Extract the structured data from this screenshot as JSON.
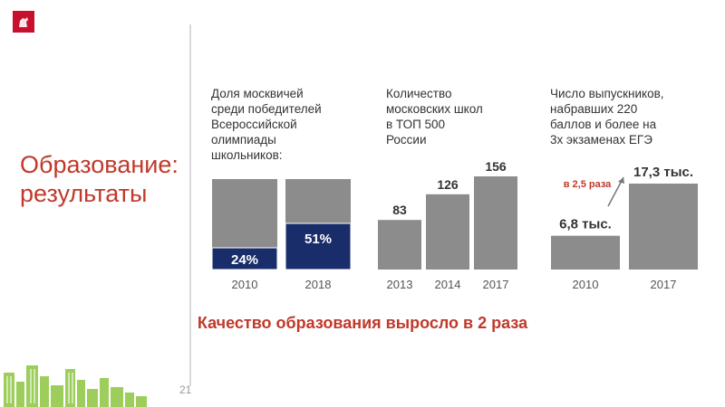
{
  "slide": {
    "title": "Образование:\nрезультаты",
    "conclusion": "Качество образования выросло в 2 раза",
    "page_number": "21"
  },
  "colors": {
    "accent": "#c0392b",
    "gray_bar": "#8c8c8c",
    "navy_bar": "#1a2d6b",
    "cityscape_green": "#8dc63f"
  },
  "icons": {
    "logo": "moscow-coat-of-arms-icon",
    "decor": "cityscape-icon"
  },
  "chart_data": [
    {
      "type": "bar",
      "stacked_percent": true,
      "title": "Доля москвичей\nсреди победителей\nВсероссийской\nолимпиады\nшкольников:",
      "categories": [
        "2010",
        "2018"
      ],
      "values": [
        24,
        51
      ],
      "labels": [
        "24%",
        "51%"
      ],
      "ylim": [
        0,
        100
      ],
      "colors": [
        "#1a2d6b",
        "#8c8c8c"
      ]
    },
    {
      "type": "bar",
      "title": "Количество\nмосковских школ\nв ТОП 500\nРоссии",
      "categories": [
        "2013",
        "2014",
        "2017"
      ],
      "values": [
        83,
        126,
        156
      ],
      "labels": [
        "83",
        "126",
        "156"
      ],
      "ylim": [
        0,
        160
      ]
    },
    {
      "type": "bar",
      "title": "Число выпускников,\nнабравших 220\nбаллов и более на\n3х экзаменах ЕГЭ",
      "categories": [
        "2010",
        "2017"
      ],
      "values": [
        6.8,
        17.3
      ],
      "labels": [
        "6,8 тыс.",
        "17,3 тыс."
      ],
      "ylim": [
        0,
        18
      ],
      "annotation": "в 2,5 раза"
    }
  ]
}
